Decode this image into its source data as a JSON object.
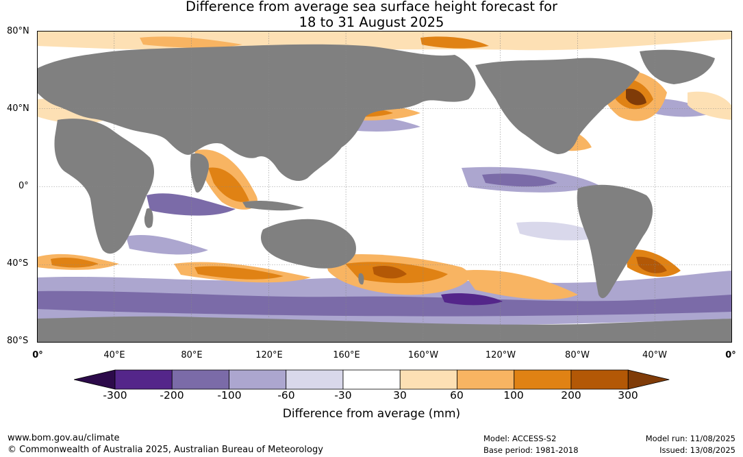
{
  "title": {
    "line1": "Difference from average sea surface height forecast for",
    "line2": "18 to 31 August 2025"
  },
  "axes": {
    "y_labels": [
      "80°N",
      "40°N",
      "0°",
      "40°S",
      "80°S"
    ],
    "x_labels": [
      "0°",
      "40°E",
      "80°E",
      "120°E",
      "160°E",
      "160°W",
      "120°W",
      "80°W",
      "40°W",
      "0°"
    ]
  },
  "colorbar": {
    "title": "Difference from average (mm)",
    "tick_labels": [
      "-300",
      "-200",
      "-100",
      "-60",
      "-30",
      "30",
      "60",
      "100",
      "200",
      "300"
    ],
    "colors": [
      "#2c0a4a",
      "#54268a",
      "#7b6ba8",
      "#aca6cf",
      "#d9d8eb",
      "#ffffff",
      "#fde0b4",
      "#f8b462",
      "#e08214",
      "#b35806",
      "#7f3b08"
    ]
  },
  "map_colors": {
    "land": "#808080",
    "ocean_neutral": "#ffffff",
    "grid": "#888888"
  },
  "footer": {
    "website": "www.bom.gov.au/climate",
    "copyright": "© Commonwealth of Australia 2025, Australian Bureau of Meteorology",
    "model": "Model: ACCESS-S2",
    "base_period": "Base period: 1981-2018",
    "model_run": "Model run: 11/08/2025",
    "issued": "Issued: 13/08/2025"
  }
}
